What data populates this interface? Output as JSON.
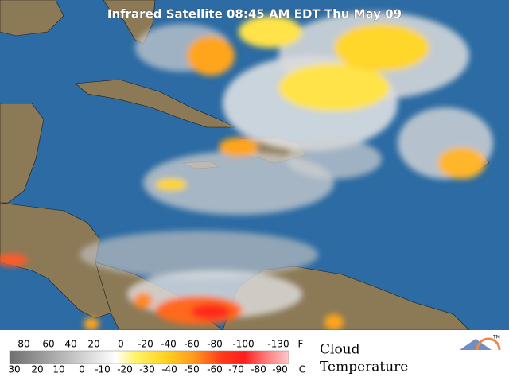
{
  "header": {
    "title": "Infrared Satellite 08:45 AM EDT Thu May 09"
  },
  "legend": {
    "fahrenheit": {
      "ticks": [
        80,
        60,
        40,
        20,
        0,
        -20,
        -40,
        -60,
        -80,
        -100,
        -130
      ],
      "unit": "F"
    },
    "celsius": {
      "ticks": [
        30,
        20,
        10,
        0,
        -10,
        -20,
        -30,
        -40,
        -50,
        -60,
        -70,
        -80,
        -90
      ],
      "unit": "C"
    },
    "caption": [
      "Cloud",
      "Temperature"
    ],
    "logo": "TM"
  }
}
